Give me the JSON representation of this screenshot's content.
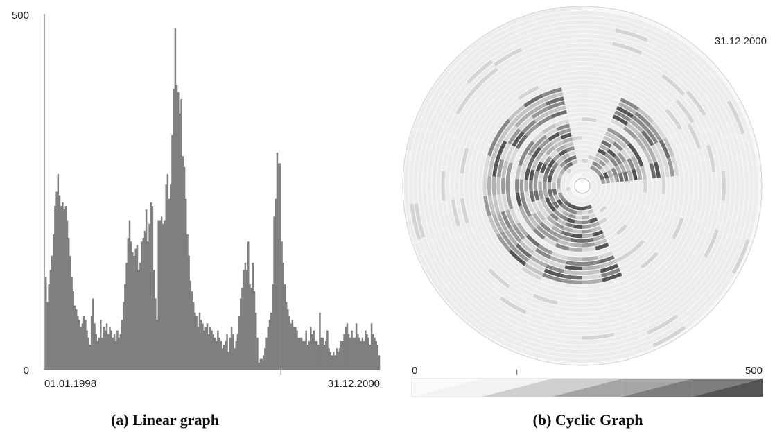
{
  "figure": {
    "caption_a": "(a)  Linear graph",
    "caption_b": "(b) Cyclic Graph"
  },
  "chart_data": [
    {
      "type": "bar",
      "title": "",
      "xlabel": "",
      "ylabel": "",
      "ylim": [
        0,
        500
      ],
      "y_ticks": [
        "0",
        "500"
      ],
      "x_tick_labels": [
        "01.01.1998",
        "31.12.2000"
      ],
      "x_range": [
        "01.01.1998",
        "31.12.2000"
      ],
      "bar_color": "#7f7f7f",
      "grid": false,
      "values": [
        130,
        95,
        120,
        140,
        160,
        190,
        230,
        250,
        275,
        245,
        230,
        235,
        225,
        230,
        210,
        185,
        160,
        130,
        110,
        90,
        85,
        75,
        70,
        60,
        65,
        75,
        70,
        55,
        45,
        35,
        75,
        100,
        65,
        50,
        40,
        45,
        70,
        45,
        60,
        55,
        65,
        50,
        60,
        55,
        45,
        50,
        40,
        55,
        45,
        50,
        70,
        95,
        120,
        150,
        185,
        210,
        180,
        165,
        160,
        170,
        175,
        140,
        150,
        180,
        185,
        195,
        225,
        180,
        205,
        235,
        230,
        140,
        100,
        70,
        210,
        210,
        215,
        205,
        210,
        260,
        275,
        240,
        260,
        330,
        395,
        480,
        400,
        390,
        360,
        380,
        300,
        285,
        240,
        190,
        160,
        125,
        110,
        95,
        80,
        75,
        60,
        80,
        70,
        65,
        55,
        60,
        65,
        50,
        60,
        55,
        50,
        45,
        40,
        55,
        45,
        40,
        30,
        35,
        40,
        50,
        25,
        45,
        60,
        50,
        30,
        40,
        50,
        75,
        100,
        115,
        140,
        150,
        140,
        180,
        120,
        115,
        150,
        110,
        80,
        45,
        10,
        15,
        15,
        20,
        30,
        45,
        60,
        70,
        80,
        120,
        215,
        240,
        305,
        290,
        290,
        180,
        150,
        120,
        95,
        85,
        75,
        65,
        70,
        60,
        60,
        55,
        45,
        45,
        45,
        40,
        40,
        55,
        35,
        40,
        60,
        50,
        55,
        40,
        40,
        35,
        80,
        45,
        45,
        35,
        40,
        55,
        30,
        25,
        20,
        25,
        20,
        30,
        25,
        30,
        40,
        40,
        50,
        60,
        65,
        50,
        45,
        55,
        45,
        45,
        65,
        50,
        45,
        40,
        45,
        40,
        55,
        50,
        45,
        35,
        65,
        50,
        45,
        40,
        35,
        20
      ],
      "ticks_between": [
        155,
        310
      ]
    },
    {
      "type": "heatmap",
      "subtype": "spiral",
      "title": "",
      "end_label": "31.12.2000",
      "scale_min": "0",
      "scale_max": "500",
      "scale_colors": [
        "#f2f2f2",
        "#cfcfcf",
        "#a5a5a5",
        "#7d7d7d",
        "#555555"
      ],
      "turns": 36,
      "base_color": "#ededed",
      "dark_sectors_deg": [
        [
          270,
          340
        ],
        [
          20,
          80
        ],
        [
          150,
          220
        ],
        [
          220,
          265
        ]
      ],
      "dark_turn_ranges": [
        [
          2,
          5
        ],
        [
          6,
          11
        ],
        [
          13,
          18
        ]
      ]
    }
  ]
}
